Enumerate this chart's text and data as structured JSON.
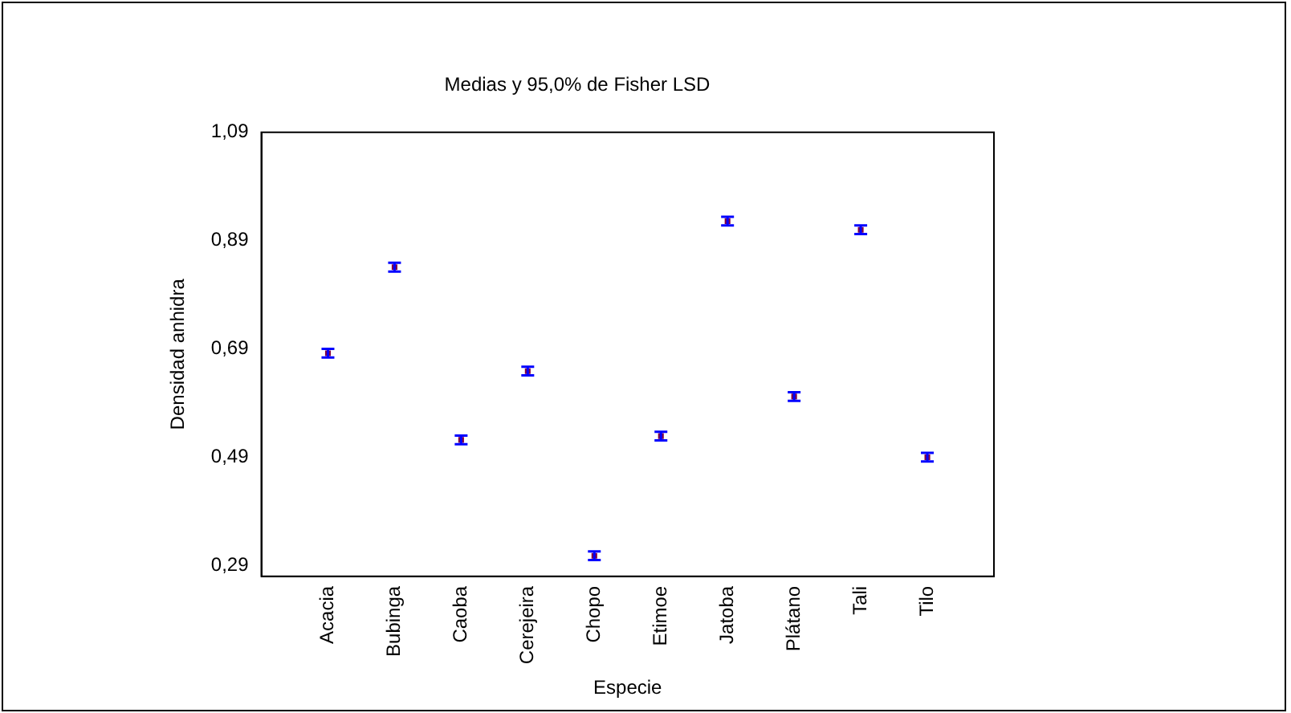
{
  "chart_data": {
    "type": "scatter",
    "title": "Medias y 95,0% de Fisher LSD",
    "xlabel": "Especie",
    "ylabel": "Densidad anhidra",
    "categories": [
      "Acacia",
      "Bubinga",
      "Caoba",
      "Cerejeira",
      "Chopo",
      "Etimoe",
      "Jatoba",
      "Plátano",
      "Tali",
      "Tilo"
    ],
    "series": [
      {
        "color": "#0000ff",
        "values": [
          0.682,
          0.841,
          0.522,
          0.649,
          0.308,
          0.529,
          0.926,
          0.602,
          0.91,
          0.49
        ],
        "errors": [
          0.008,
          0.008,
          0.008,
          0.008,
          0.008,
          0.008,
          0.008,
          0.008,
          0.008,
          0.008
        ]
      }
    ],
    "ylim": [
      0.27,
      1.09
    ],
    "yticks": [
      {
        "value": 0.29,
        "label": "0,29"
      },
      {
        "value": 0.49,
        "label": "0,49"
      },
      {
        "value": 0.69,
        "label": "0,69"
      },
      {
        "value": 0.89,
        "label": "0,89"
      },
      {
        "value": 1.09,
        "label": "1,09"
      }
    ],
    "grid": false,
    "legend": false
  }
}
